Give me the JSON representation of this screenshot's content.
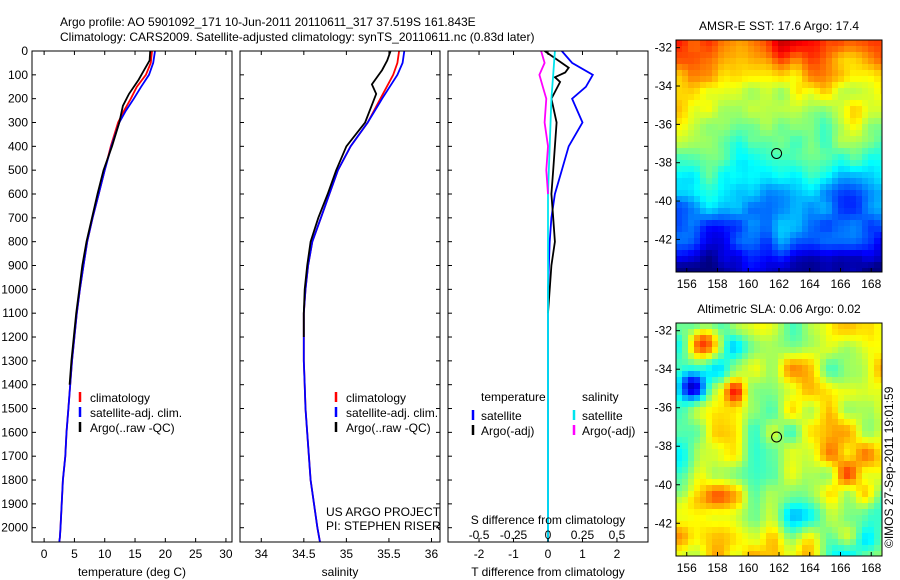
{
  "header": {
    "line1": "Argo profile: AO 5901092_171 10-Jun-2011 20110611_317 37.519S 161.843E",
    "line2": "Climatology: CARS2009. Satellite-adjusted climatology: synTS_20110611.nc (0.83d later)"
  },
  "credits": {
    "project": "US ARGO PROJECT",
    "pi": "PI: STEPHEN RISER",
    "imos": "©IMOS 27-Sep-2011 19:01:59"
  },
  "colors": {
    "climatology": "#ff0000",
    "satellite": "#0000ff",
    "argo": "#000000",
    "sal_satellite": "#00e5ee",
    "sal_argo": "#ff00ff"
  },
  "chart_data": [
    {
      "type": "line",
      "name": "temperature-profile",
      "xlabel": "temperature (deg C)",
      "xlim": [
        -2,
        31
      ],
      "ylim": [
        2060,
        0
      ],
      "xticks": [
        0,
        5,
        10,
        15,
        20,
        25,
        30
      ],
      "yticks": [
        0,
        100,
        200,
        300,
        400,
        500,
        600,
        700,
        800,
        900,
        1000,
        1100,
        1200,
        1300,
        1400,
        1500,
        1600,
        1700,
        1800,
        1900,
        2000
      ],
      "legend": [
        "climatology",
        "satellite-adj. clim.",
        "Argo(..raw -QC)"
      ],
      "series": [
        {
          "name": "climatology",
          "color": "#ff0000",
          "x": [
            17.8,
            17.6,
            16.8,
            15.3,
            14.3,
            13.2,
            12.2,
            11.0,
            10.0,
            9.0,
            8.0,
            7.1,
            6.5,
            5.9,
            5.4,
            5.0,
            4.6,
            4.3,
            4.0,
            3.7,
            3.5,
            3.3,
            3.1,
            2.9,
            2.8,
            2.7,
            2.6,
            2.5
          ],
          "y": [
            0,
            50,
            100,
            150,
            200,
            250,
            300,
            400,
            500,
            600,
            700,
            800,
            900,
            1000,
            1100,
            1200,
            1300,
            1400,
            1500,
            1600,
            1700,
            1750,
            1800,
            1900,
            1950,
            2000,
            2040,
            2060
          ]
        },
        {
          "name": "satellite-adj. clim.",
          "color": "#0000ff",
          "x": [
            18.3,
            18.0,
            17.3,
            16.0,
            14.8,
            13.5,
            12.4,
            11.1,
            10.0,
            9.0,
            8.0,
            7.1,
            6.5,
            5.9,
            5.4,
            5.0,
            4.6,
            4.3,
            4.0,
            3.7,
            3.5,
            3.3,
            3.1,
            2.9,
            2.8,
            2.7,
            2.6,
            2.5
          ],
          "y": [
            0,
            50,
            100,
            150,
            200,
            250,
            300,
            400,
            500,
            600,
            700,
            800,
            900,
            1000,
            1100,
            1200,
            1300,
            1400,
            1500,
            1600,
            1700,
            1750,
            1800,
            1900,
            1950,
            2000,
            2040,
            2060
          ]
        },
        {
          "name": "Argo(..raw -QC)",
          "color": "#000000",
          "x": [
            17.5,
            17.4,
            16.5,
            15.6,
            14.0,
            13.0,
            12.4,
            11.2,
            9.8,
            8.8,
            7.9,
            7.0,
            6.3,
            5.8,
            5.3,
            4.9,
            4.5,
            4.2
          ],
          "y": [
            0,
            40,
            80,
            120,
            180,
            230,
            300,
            400,
            500,
            600,
            700,
            800,
            900,
            1000,
            1100,
            1200,
            1300,
            1400
          ]
        }
      ]
    },
    {
      "type": "line",
      "name": "salinity-profile",
      "xlabel": "salinity",
      "xlim": [
        33.75,
        36.1
      ],
      "ylim": [
        2060,
        0
      ],
      "xticks": [
        34,
        34.5,
        35,
        35.5,
        36
      ],
      "legend": [
        "climatology",
        "satellite-adj. clim.",
        "Argo(..raw -QC)"
      ],
      "series": [
        {
          "name": "climatology",
          "color": "#ff0000",
          "x": [
            35.62,
            35.6,
            35.55,
            35.4,
            35.25,
            35.05,
            34.9,
            34.8,
            34.7,
            34.6,
            34.55,
            34.52,
            34.5,
            34.5,
            34.5,
            34.51,
            34.52,
            34.54,
            34.56,
            34.58,
            34.6,
            34.62,
            34.64,
            34.66,
            34.68,
            34.69
          ],
          "y": [
            0,
            50,
            100,
            200,
            300,
            400,
            500,
            600,
            700,
            800,
            900,
            1000,
            1100,
            1200,
            1300,
            1400,
            1500,
            1600,
            1700,
            1800,
            1850,
            1900,
            1950,
            2000,
            2040,
            2060
          ]
        },
        {
          "name": "satellite-adj. clim.",
          "color": "#0000ff",
          "x": [
            35.68,
            35.66,
            35.6,
            35.42,
            35.25,
            35.05,
            34.9,
            34.8,
            34.7,
            34.6,
            34.55,
            34.52,
            34.5,
            34.5,
            34.5,
            34.51,
            34.52,
            34.54,
            34.56,
            34.58,
            34.6,
            34.62,
            34.64,
            34.66,
            34.68,
            34.69
          ],
          "y": [
            0,
            50,
            100,
            200,
            300,
            400,
            500,
            600,
            700,
            800,
            900,
            1000,
            1100,
            1200,
            1300,
            1400,
            1500,
            1600,
            1700,
            1800,
            1850,
            1900,
            1950,
            2000,
            2040,
            2060
          ]
        },
        {
          "name": "Argo(..raw -QC)",
          "color": "#000000",
          "x": [
            35.52,
            35.48,
            35.42,
            35.3,
            35.35,
            35.22,
            35.0,
            34.88,
            34.78,
            34.67,
            34.58,
            34.54,
            34.51,
            34.5,
            34.5
          ],
          "y": [
            0,
            40,
            80,
            140,
            180,
            300,
            400,
            500,
            600,
            700,
            800,
            900,
            1000,
            1100,
            1200
          ]
        }
      ]
    },
    {
      "type": "line",
      "name": "difference-profile",
      "xlabel": "T difference from climatology",
      "xlabel_top": "S difference from climatology",
      "xlim": [
        -2.9,
        2.9
      ],
      "ylim": [
        2060,
        0
      ],
      "xticks": [
        -2,
        -1,
        0,
        1,
        2
      ],
      "xticks_top": [
        "-0.5",
        "-0.25",
        "0",
        "0.25",
        "0.5"
      ],
      "xticks_top_pos": [
        -2,
        -1,
        0,
        1,
        2
      ],
      "legend_temperature_title": "temperature",
      "legend_salinity_title": "salinity",
      "legend_temperature": [
        "satellite",
        "Argo(-adj)"
      ],
      "legend_salinity": [
        "satellite",
        "Argo(-adj)"
      ],
      "series": [
        {
          "name": "T satellite",
          "color": "#0000ff",
          "x": [
            0.4,
            0.7,
            1.3,
            1.1,
            0.7,
            1.0,
            0.6,
            0.4,
            0.2,
            0.1,
            0.05,
            0.0,
            0.0,
            0.0,
            0.0
          ],
          "y": [
            0,
            50,
            100,
            150,
            200,
            300,
            400,
            500,
            600,
            700,
            800,
            1000,
            1200,
            1600,
            2060
          ]
        },
        {
          "name": "T Argo(-adj)",
          "color": "#000000",
          "x": [
            -0.1,
            0.3,
            0.6,
            0.5,
            0.2,
            0.35,
            0.1,
            0.25,
            0.2,
            0.15,
            0.1,
            0.15,
            0.2,
            0.1,
            0.05,
            0.0
          ],
          "y": [
            0,
            40,
            70,
            90,
            110,
            130,
            200,
            300,
            400,
            500,
            600,
            700,
            800,
            900,
            1000,
            1100
          ]
        },
        {
          "name": "S satellite",
          "color": "#00e5ee",
          "x": [
            0.2,
            0.15,
            0.1,
            0.05,
            0.0,
            0.0,
            0.0,
            0.0,
            0.0
          ],
          "y": [
            0,
            100,
            200,
            400,
            600,
            800,
            1200,
            1600,
            2060
          ]
        },
        {
          "name": "S Argo(-adj)",
          "color": "#ff00ff",
          "x": [
            -0.2,
            -0.1,
            -0.25,
            -0.15,
            -0.05,
            -0.1,
            0.0,
            -0.05,
            0.0
          ],
          "y": [
            0,
            50,
            100,
            150,
            200,
            300,
            400,
            500,
            600
          ]
        }
      ]
    },
    {
      "type": "heatmap",
      "name": "sst-map",
      "title": "AMSR-E SST: 17.6 Argo: 17.4",
      "xlim": [
        155.3,
        168.7
      ],
      "ylim": [
        -43.7,
        -31.6
      ],
      "xticks": [
        156,
        158,
        160,
        162,
        164,
        166,
        168
      ],
      "yticks": [
        -32,
        -34,
        -36,
        -38,
        -40,
        -42
      ],
      "marker": {
        "lon": 161.843,
        "lat": -37.519
      }
    },
    {
      "type": "heatmap",
      "name": "sla-map",
      "title": "Altimetric SLA: 0.06 Argo: 0.02",
      "xlim": [
        155.3,
        168.7
      ],
      "ylim": [
        -43.7,
        -31.6
      ],
      "xticks": [
        156,
        158,
        160,
        162,
        164,
        166,
        168
      ],
      "yticks": [
        -32,
        -34,
        -36,
        -38,
        -40,
        -42
      ],
      "marker": {
        "lon": 161.843,
        "lat": -37.519
      }
    }
  ]
}
